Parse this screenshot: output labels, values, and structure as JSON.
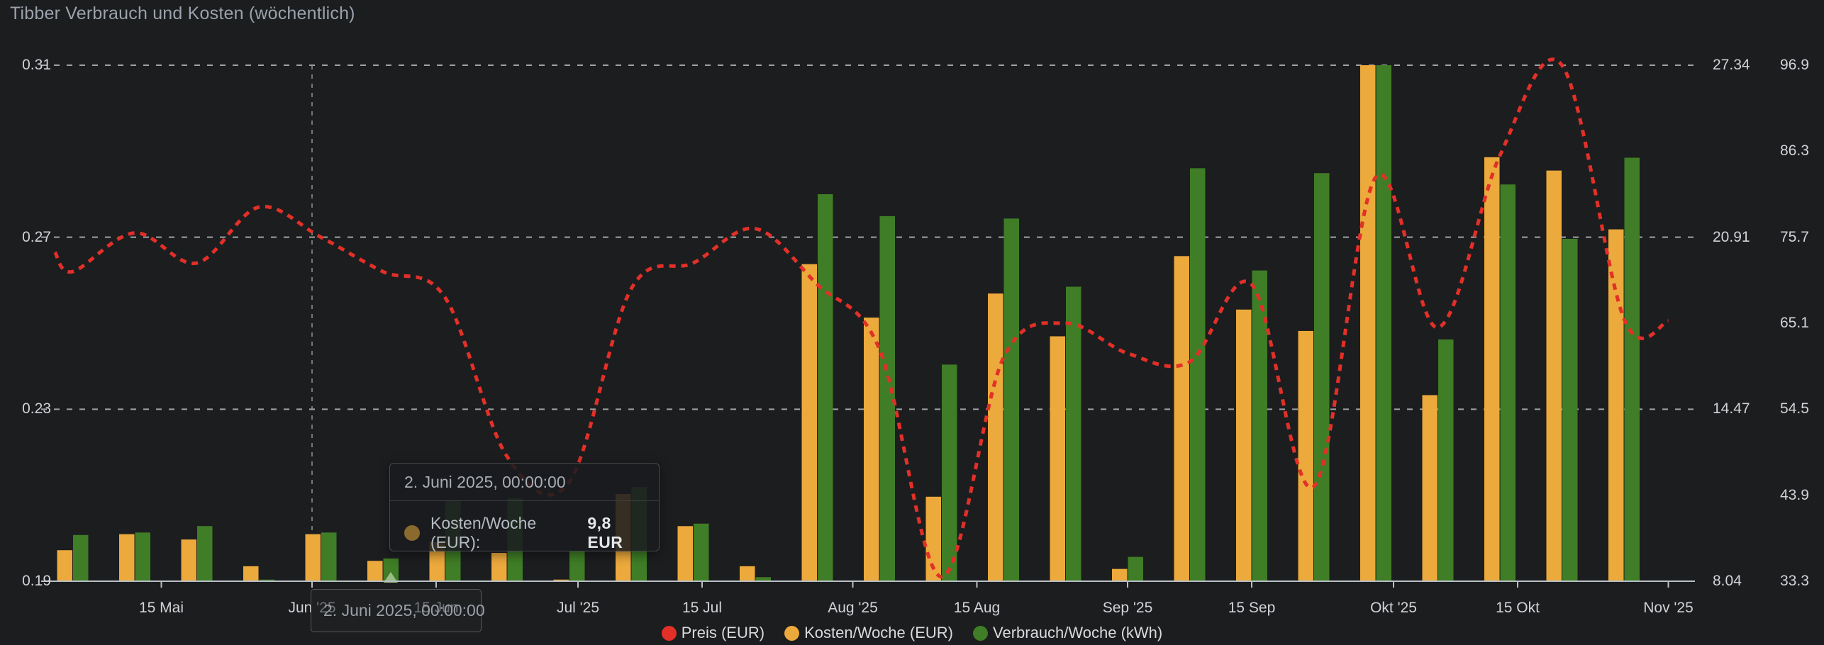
{
  "panel": {
    "title": "Tibber Verbrauch und Kosten (wöchentlich)"
  },
  "colors": {
    "background": "#1c1d1f",
    "title_text": "#9aa2ab",
    "axis_text": "#d0d3d7",
    "grid": "#ccd1d6",
    "axis_line": "#b9bfc5",
    "price_line": "#e23028",
    "cost_bar": "#eca93c",
    "consumption_bar": "#3f7d26",
    "crosshair": "#888d93",
    "tooltip_dot": "#8a6b2d",
    "hover_marker": "#a4c492"
  },
  "chart_data": {
    "type": "mixed",
    "title": "Tibber Verbrauch und Kosten (wöchentlich)",
    "series": [
      {
        "name": "Preis (EUR)",
        "type": "line",
        "style": "dashed",
        "color": "#e23028",
        "axis": "price"
      },
      {
        "name": "Kosten/Woche (EUR)",
        "type": "bar",
        "color": "#eca93c",
        "axis": "cost"
      },
      {
        "name": "Verbrauch/Woche (kWh)",
        "type": "bar",
        "color": "#3f7d26",
        "axis": "kwh"
      }
    ],
    "axes": {
      "price": {
        "side": "left",
        "min": 0.19,
        "max": 0.31,
        "ticks": [
          {
            "v": 0.31,
            "label": "0.31"
          },
          {
            "v": 0.27,
            "label": "0.27"
          },
          {
            "v": 0.23,
            "label": "0.23"
          },
          {
            "v": 0.19,
            "label": "0.19"
          }
        ]
      },
      "cost": {
        "side": "right",
        "min": 8.04,
        "max": 27.34,
        "ticks": [
          {
            "v": 27.34,
            "label": "27.34"
          },
          {
            "v": 20.91,
            "label": "20.91"
          },
          {
            "v": 14.47,
            "label": "14.47"
          },
          {
            "v": 8.04,
            "label": "8.04"
          }
        ]
      },
      "kwh": {
        "side": "right",
        "min": 33.3,
        "max": 96.9,
        "ticks": [
          {
            "v": 96.9,
            "label": "96.9"
          },
          {
            "v": 86.3,
            "label": "86.3"
          },
          {
            "v": 75.7,
            "label": "75.7"
          },
          {
            "v": 65.1,
            "label": "65.1"
          },
          {
            "v": 54.5,
            "label": "54.5"
          },
          {
            "v": 43.9,
            "label": "43.9"
          },
          {
            "v": 33.3,
            "label": "33.3"
          }
        ]
      }
    },
    "x_ticks": [
      {
        "date": "2025-05-15",
        "label": "15 Mai"
      },
      {
        "date": "2025-06-01",
        "label": "Jun '25"
      },
      {
        "date": "2025-06-15",
        "label": "15 Jun"
      },
      {
        "date": "2025-07-01",
        "label": "Jul '25"
      },
      {
        "date": "2025-07-15",
        "label": "15 Jul"
      },
      {
        "date": "2025-08-01",
        "label": "Aug '25"
      },
      {
        "date": "2025-08-15",
        "label": "15 Aug"
      },
      {
        "date": "2025-09-01",
        "label": "Sep '25"
      },
      {
        "date": "2025-09-15",
        "label": "15 Sep"
      },
      {
        "date": "2025-10-01",
        "label": "Okt '25"
      },
      {
        "date": "2025-10-15",
        "label": "15 Okt"
      },
      {
        "date": "2025-11-01",
        "label": "Nov '25"
      }
    ],
    "weeks": [
      {
        "date": "2025-05-05",
        "cost_eur": 9.2,
        "kwh": 39.0,
        "price_eur": 0.262
      },
      {
        "date": "2025-05-12",
        "cost_eur": 9.8,
        "kwh": 39.3,
        "price_eur": 0.271
      },
      {
        "date": "2025-05-19",
        "cost_eur": 9.6,
        "kwh": 40.1,
        "price_eur": 0.264
      },
      {
        "date": "2025-05-26",
        "cost_eur": 8.6,
        "kwh": 33.5,
        "price_eur": 0.277
      },
      {
        "date": "2025-06-02",
        "cost_eur": 9.8,
        "kwh": 39.3,
        "price_eur": 0.27
      },
      {
        "date": "2025-06-09",
        "cost_eur": 8.8,
        "kwh": 36.1,
        "price_eur": 0.262
      },
      {
        "date": "2025-06-16",
        "cost_eur": 9.5,
        "kwh": 43.3,
        "price_eur": 0.256
      },
      {
        "date": "2025-06-23",
        "cost_eur": 9.1,
        "kwh": 43.5,
        "price_eur": 0.219
      },
      {
        "date": "2025-06-30",
        "cost_eur": 8.1,
        "kwh": 37.0,
        "price_eur": 0.213
      },
      {
        "date": "2025-07-07",
        "cost_eur": 11.3,
        "kwh": 44.9,
        "price_eur": 0.258
      },
      {
        "date": "2025-07-14",
        "cost_eur": 10.1,
        "kwh": 40.4,
        "price_eur": 0.264
      },
      {
        "date": "2025-07-21",
        "cost_eur": 8.6,
        "kwh": 33.8,
        "price_eur": 0.272
      },
      {
        "date": "2025-07-28",
        "cost_eur": 19.9,
        "kwh": 81.0,
        "price_eur": 0.259
      },
      {
        "date": "2025-08-04",
        "cost_eur": 17.9,
        "kwh": 78.3,
        "price_eur": 0.244
      },
      {
        "date": "2025-08-11",
        "cost_eur": 11.2,
        "kwh": 60.0,
        "price_eur": 0.191
      },
      {
        "date": "2025-08-18",
        "cost_eur": 18.8,
        "kwh": 78.0,
        "price_eur": 0.242
      },
      {
        "date": "2025-08-25",
        "cost_eur": 17.2,
        "kwh": 69.6,
        "price_eur": 0.25
      },
      {
        "date": "2025-09-01",
        "cost_eur": 8.5,
        "kwh": 36.3,
        "price_eur": 0.243
      },
      {
        "date": "2025-09-08",
        "cost_eur": 20.2,
        "kwh": 84.2,
        "price_eur": 0.241
      },
      {
        "date": "2025-09-15",
        "cost_eur": 18.2,
        "kwh": 71.6,
        "price_eur": 0.259
      },
      {
        "date": "2025-09-22",
        "cost_eur": 17.4,
        "kwh": 83.6,
        "price_eur": 0.212
      },
      {
        "date": "2025-09-29",
        "cost_eur": 27.34,
        "kwh": 96.9,
        "price_eur": 0.284
      },
      {
        "date": "2025-10-06",
        "cost_eur": 15.0,
        "kwh": 63.1,
        "price_eur": 0.249
      },
      {
        "date": "2025-10-13",
        "cost_eur": 23.9,
        "kwh": 82.2,
        "price_eur": 0.289
      },
      {
        "date": "2025-10-20",
        "cost_eur": 23.4,
        "kwh": 75.5,
        "price_eur": 0.31
      },
      {
        "date": "2025-10-27",
        "cost_eur": 21.2,
        "kwh": 85.5,
        "price_eur": 0.251
      }
    ],
    "price_line_endpoints": {
      "start": {
        "date": "2025-05-03",
        "value": 0.2665
      },
      "end": {
        "date": "2025-11-01",
        "value": 0.2505
      }
    },
    "legend_position": "bottom-center",
    "grid": true
  },
  "crosshair": {
    "x_date": "2025-06-01"
  },
  "hover_marker": {
    "date": "2025-06-09",
    "series": "kwh"
  },
  "tooltip": {
    "title": "2. Juni 2025, 00:00:00",
    "rows": [
      {
        "label": "Kosten/Woche (EUR):",
        "value": "9,8 EUR"
      }
    ]
  },
  "axis_tooltip": {
    "label": "2. Juni 2025, 00:00:00"
  },
  "legend": {
    "items": [
      {
        "label": "Preis (EUR)",
        "color": "#e23028"
      },
      {
        "label": "Kosten/Woche (EUR)",
        "color": "#eca93c"
      },
      {
        "label": "Verbrauch/Woche (kWh)",
        "color": "#3f7d26"
      }
    ]
  }
}
